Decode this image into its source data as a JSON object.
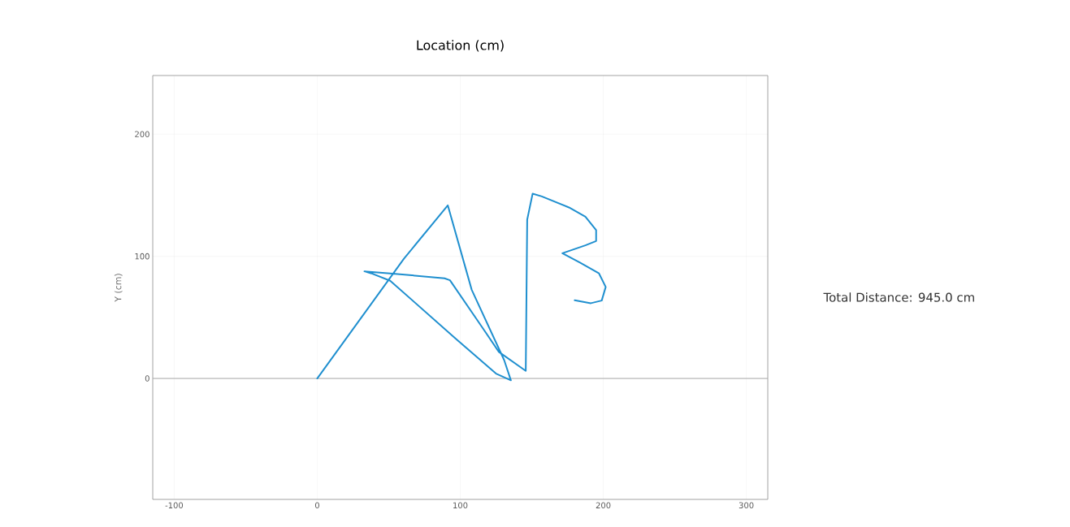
{
  "chart_data": {
    "type": "line",
    "title": "Location (cm)",
    "ylabel": "Y (cm)",
    "annotations": [
      "Total Distance: 945.0 cm"
    ],
    "series": [
      {
        "color": "#1f8fcf",
        "x": [
          0,
          60.6,
          91.3,
          108,
          130.7,
          135.4,
          125,
          96.6,
          51,
          37.9,
          33,
          51,
          89,
          92.8,
          115.5,
          127,
          145.8,
          146.8,
          150.6,
          157,
          176,
          187.5,
          195,
          195,
          187.5,
          171.4,
          183.7,
          197,
          201.7,
          198.9,
          191.3,
          180
        ],
        "values": [
          0,
          98,
          141.7,
          72.6,
          15,
          -1.5,
          4,
          32.8,
          80,
          86,
          87.7,
          86,
          82,
          80.4,
          41.6,
          21.7,
          6.2,
          130,
          151.3,
          149,
          140,
          132.4,
          121.4,
          112.5,
          109,
          102.5,
          94.8,
          86,
          74.9,
          63.8,
          61.6,
          64
        ]
      }
    ],
    "xlim": [
      -115,
      315
    ],
    "ylim": [
      -99,
      248
    ],
    "xticks": [
      -100,
      0,
      100,
      200,
      300
    ],
    "yticks": [
      0,
      100,
      200
    ],
    "grid": true,
    "marker": "none",
    "line_style": "solid",
    "ref_lines": [
      {
        "axis": "y",
        "value": 0,
        "color": "#aaaaaa"
      }
    ]
  }
}
